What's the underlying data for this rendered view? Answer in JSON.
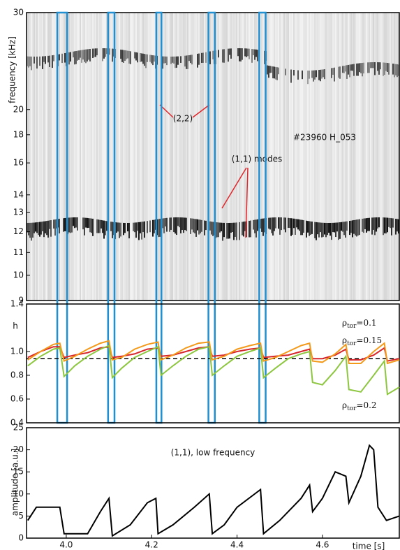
{
  "chart_data": [
    {
      "type": "spectrogram",
      "ylabel": "frequency [kHz]",
      "log": true,
      "xlim": [
        3.907,
        4.78
      ],
      "ylim": [
        9,
        30
      ],
      "yticks": [
        9,
        10,
        11,
        12,
        13,
        14,
        16,
        18,
        20,
        30
      ],
      "annotations": [
        "(2,2)",
        "(1,1) modes",
        "#23960   H_053"
      ],
      "highlight_intervals": [
        [
          3.979,
          4.002
        ],
        [
          4.098,
          4.113
        ],
        [
          4.211,
          4.223
        ],
        [
          4.333,
          4.348
        ],
        [
          4.452,
          4.467
        ]
      ],
      "highlight_color": "#1f8fd1"
    },
    {
      "type": "line",
      "ylabel": "h",
      "xlim": [
        3.907,
        4.78
      ],
      "ylim": [
        0.4,
        1.4
      ],
      "yticks": [
        0.4,
        0.6,
        0.8,
        {
          "value": 1,
          "label": "1.0"
        },
        1.4
      ],
      "reference_line": 0.94,
      "x": [
        3.91,
        3.94,
        3.97,
        3.985,
        3.995,
        4.02,
        4.05,
        4.08,
        4.1,
        4.108,
        4.13,
        4.16,
        4.19,
        4.215,
        4.222,
        4.25,
        4.28,
        4.31,
        4.335,
        4.342,
        4.37,
        4.4,
        4.43,
        4.455,
        4.462,
        4.49,
        4.52,
        4.55,
        4.57,
        4.577,
        4.6,
        4.63,
        4.655,
        4.662,
        4.69,
        4.72,
        4.745,
        4.752,
        4.78
      ],
      "series": [
        {
          "name": "ρtor=0.1",
          "color": "#d7262b",
          "values": [
            0.95,
            1.0,
            1.04,
            1.04,
            0.95,
            0.97,
            0.99,
            1.03,
            1.04,
            0.95,
            0.96,
            0.98,
            1.02,
            1.03,
            0.96,
            0.97,
            1.0,
            1.03,
            1.04,
            0.96,
            0.97,
            1.0,
            1.02,
            1.03,
            0.95,
            0.96,
            0.97,
            1.0,
            1.02,
            0.94,
            0.94,
            0.97,
            1.02,
            0.93,
            0.93,
            0.97,
            1.03,
            0.92,
            0.94
          ]
        },
        {
          "name": "ρtor=0.15",
          "color": "#f39a1b",
          "values": [
            0.93,
            1.0,
            1.06,
            1.07,
            0.92,
            0.96,
            1.02,
            1.07,
            1.09,
            0.93,
            0.95,
            1.02,
            1.06,
            1.08,
            0.93,
            0.97,
            1.03,
            1.07,
            1.08,
            0.93,
            0.96,
            1.02,
            1.05,
            1.07,
            0.92,
            0.95,
            1.0,
            1.05,
            1.07,
            0.92,
            0.91,
            0.98,
            1.06,
            0.9,
            0.9,
            1.0,
            1.07,
            0.9,
            0.93
          ]
        },
        {
          "name": "ρtor=0.2",
          "color": "#8dc63f",
          "values": [
            0.88,
            0.96,
            1.02,
            1.03,
            0.79,
            0.88,
            0.96,
            1.02,
            1.05,
            0.78,
            0.86,
            0.95,
            1.0,
            1.04,
            0.8,
            0.88,
            0.96,
            1.02,
            1.04,
            0.8,
            0.88,
            0.96,
            1.0,
            1.03,
            0.78,
            0.86,
            0.94,
            0.98,
            1.0,
            0.74,
            0.72,
            0.84,
            0.96,
            0.68,
            0.66,
            0.8,
            0.92,
            0.64,
            0.7
          ]
        }
      ]
    },
    {
      "type": "line",
      "ylabel": "amplitude [a.u.]",
      "xlabel": "time [s]",
      "annotation": "(1,1), low frequency",
      "xlim": [
        3.907,
        4.78
      ],
      "xticks": [
        {
          "value": 4,
          "label": "4.0"
        },
        4.2,
        4.4,
        4.6
      ],
      "ylim": [
        0,
        25
      ],
      "yticks": [
        0,
        5,
        10,
        15,
        20,
        25
      ],
      "x": [
        3.91,
        3.93,
        3.985,
        3.995,
        4.05,
        4.08,
        4.1,
        4.108,
        4.15,
        4.19,
        4.21,
        4.215,
        4.25,
        4.3,
        4.335,
        4.342,
        4.37,
        4.4,
        4.455,
        4.462,
        4.5,
        4.55,
        4.57,
        4.577,
        4.6,
        4.63,
        4.655,
        4.662,
        4.69,
        4.71,
        4.72,
        4.73,
        4.75,
        4.78
      ],
      "series": [
        {
          "color": "#000000",
          "values": [
            4,
            7,
            7,
            1,
            1,
            6,
            9,
            0.5,
            3,
            8,
            9,
            1,
            3,
            7,
            10,
            1,
            3,
            7,
            11,
            1,
            4,
            9,
            12,
            6,
            9,
            15,
            14,
            8,
            14,
            21,
            20,
            7,
            4,
            5
          ]
        }
      ]
    }
  ]
}
